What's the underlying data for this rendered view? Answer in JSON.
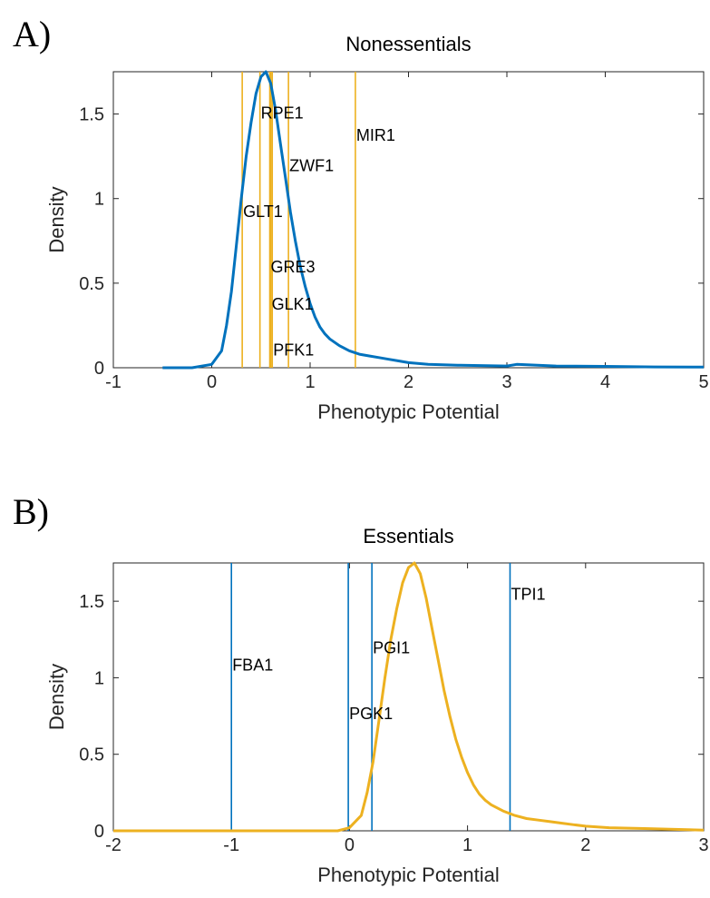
{
  "panels": [
    {
      "letter": "A)"
    },
    {
      "letter": "B)"
    }
  ],
  "chart_data": [
    {
      "type": "line",
      "title": "Nonessentials",
      "xlabel": "Phenotypic Potential",
      "ylabel": "Density",
      "xlim": [
        -1,
        5
      ],
      "ylim": [
        0,
        1.75
      ],
      "xticks": [
        "-1",
        "0",
        "1",
        "2",
        "3",
        "4",
        "5"
      ],
      "yticks": [
        "0",
        "0.5",
        "1",
        "1.5"
      ],
      "grid": false,
      "series": [
        {
          "color": "#0072BD",
          "x": [
            -0.5,
            -0.2,
            0.0,
            0.1,
            0.15,
            0.2,
            0.25,
            0.3,
            0.35,
            0.4,
            0.45,
            0.5,
            0.55,
            0.6,
            0.65,
            0.7,
            0.75,
            0.8,
            0.85,
            0.9,
            0.95,
            1.0,
            1.05,
            1.1,
            1.15,
            1.2,
            1.3,
            1.4,
            1.5,
            1.6,
            1.7,
            1.8,
            1.9,
            2.0,
            2.2,
            2.5,
            3.0,
            3.1,
            3.5,
            4.0,
            4.5,
            5.0
          ],
          "y": [
            0.0,
            0.0,
            0.02,
            0.1,
            0.25,
            0.45,
            0.72,
            1.0,
            1.25,
            1.45,
            1.62,
            1.72,
            1.75,
            1.68,
            1.52,
            1.32,
            1.12,
            0.92,
            0.75,
            0.6,
            0.48,
            0.38,
            0.3,
            0.24,
            0.2,
            0.17,
            0.13,
            0.1,
            0.08,
            0.07,
            0.06,
            0.05,
            0.04,
            0.03,
            0.02,
            0.015,
            0.01,
            0.02,
            0.01,
            0.008,
            0.005,
            0.004
          ]
        }
      ],
      "gene_markers": {
        "color": "#EDB120",
        "lines": [
          {
            "label": "",
            "x": 0.31
          },
          {
            "label": "",
            "x": 0.49
          },
          {
            "label": "",
            "x": 0.59
          },
          {
            "label": "",
            "x": 0.6
          },
          {
            "label": "",
            "x": 0.615
          },
          {
            "label": "",
            "x": 0.78
          },
          {
            "label": "",
            "x": 1.46
          }
        ],
        "labels": [
          {
            "label": "RPE1",
            "x": 0.49,
            "y": 1.51
          },
          {
            "label": "MIR1",
            "x": 1.46,
            "y": 1.38
          },
          {
            "label": "ZWF1",
            "x": 0.78,
            "y": 1.2
          },
          {
            "label": "GLT1",
            "x": 0.31,
            "y": 0.93
          },
          {
            "label": "GRE3",
            "x": 0.59,
            "y": 0.6
          },
          {
            "label": "GLK1",
            "x": 0.6,
            "y": 0.38
          },
          {
            "label": "PFK1",
            "x": 0.615,
            "y": 0.11
          }
        ]
      }
    },
    {
      "type": "line",
      "title": "Essentials",
      "xlabel": "Phenotypic Potential",
      "ylabel": "Density",
      "xlim": [
        -2,
        3
      ],
      "ylim": [
        0,
        1.75
      ],
      "xticks": [
        "-2",
        "-1",
        "0",
        "1",
        "2",
        "3"
      ],
      "yticks": [
        "0",
        "0.5",
        "1",
        "1.5"
      ],
      "grid": false,
      "series": [
        {
          "color": "#EDB120",
          "x": [
            -2.0,
            -1.0,
            -0.5,
            -0.1,
            0.0,
            0.1,
            0.15,
            0.2,
            0.25,
            0.3,
            0.35,
            0.4,
            0.45,
            0.5,
            0.55,
            0.6,
            0.65,
            0.7,
            0.75,
            0.8,
            0.85,
            0.9,
            0.95,
            1.0,
            1.05,
            1.1,
            1.15,
            1.2,
            1.3,
            1.4,
            1.5,
            1.6,
            1.7,
            1.8,
            1.9,
            2.0,
            2.2,
            2.5,
            3.0
          ],
          "y": [
            0.0,
            0.0,
            0.0,
            0.0,
            0.02,
            0.1,
            0.25,
            0.45,
            0.72,
            1.0,
            1.25,
            1.45,
            1.62,
            1.72,
            1.75,
            1.68,
            1.52,
            1.32,
            1.12,
            0.92,
            0.75,
            0.6,
            0.48,
            0.38,
            0.3,
            0.24,
            0.2,
            0.17,
            0.13,
            0.1,
            0.08,
            0.07,
            0.06,
            0.05,
            0.04,
            0.03,
            0.02,
            0.015,
            0.005
          ]
        }
      ],
      "gene_markers": {
        "color": "#0072BD",
        "lines": [
          {
            "label": "",
            "x": -1.0
          },
          {
            "label": "",
            "x": -0.01
          },
          {
            "label": "",
            "x": 0.19
          },
          {
            "label": "",
            "x": 1.36
          }
        ],
        "labels": [
          {
            "label": "TPI1",
            "x": 1.36,
            "y": 1.55
          },
          {
            "label": "FBA1",
            "x": -1.0,
            "y": 1.09
          },
          {
            "label": "PGI1",
            "x": 0.19,
            "y": 1.2
          },
          {
            "label": "PGK1",
            "x": -0.01,
            "y": 0.77
          }
        ]
      }
    }
  ]
}
